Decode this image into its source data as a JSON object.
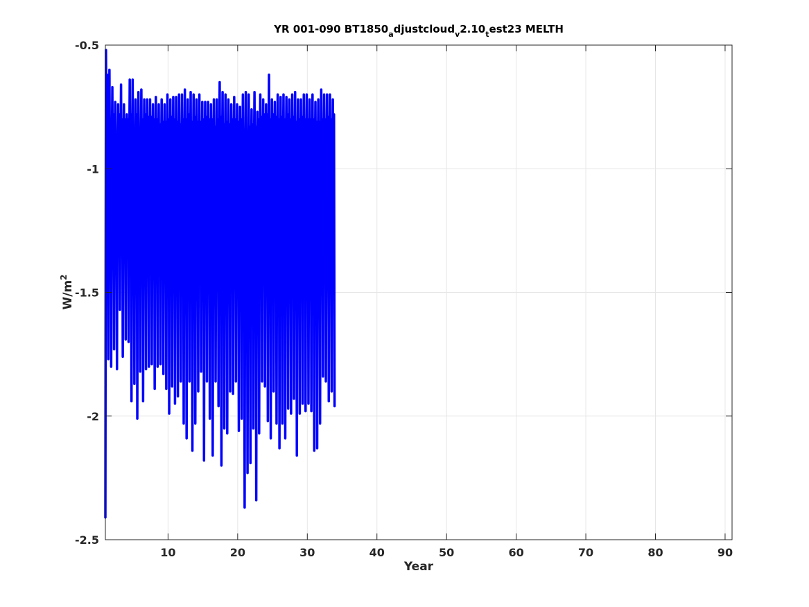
{
  "chart_data": {
    "type": "line",
    "title": {
      "t1": "YR 001-090 BT1850",
      "s1": "a",
      "t2": "djustcloud",
      "s2": "v",
      "t3": "2.10",
      "s3": "t",
      "t4": "est23 MELTH"
    },
    "xlabel": "Year",
    "ylabel": {
      "base": "W/m",
      "sup": "2"
    },
    "xlim": [
      1,
      91
    ],
    "ylim": [
      -2.5,
      -0.5
    ],
    "xticks": [
      10,
      20,
      30,
      40,
      50,
      60,
      70,
      80,
      90
    ],
    "yticks": [
      -2.5,
      -2,
      -1.5,
      -1,
      -0.5
    ],
    "xtick_labels": [
      "10",
      "20",
      "30",
      "40",
      "50",
      "60",
      "70",
      "80",
      "90"
    ],
    "ytick_labels": [
      "-2.5",
      "-2",
      "-1.5",
      "-1",
      "-0.5"
    ],
    "grid": true,
    "line_color": "#0000ff",
    "series": [
      {
        "x_start": 1.0,
        "x_step": 0.0833333,
        "values": [
          -2.41,
          -0.52,
          -0.9,
          -0.62,
          -1.05,
          -1.77,
          -0.98,
          -0.6,
          -1.1,
          -0.93,
          -1.8,
          -0.97,
          -0.67,
          -1.21,
          -0.78,
          -1.73,
          -0.96,
          -0.73,
          -1.1,
          -0.88,
          -1.81,
          -0.97,
          -0.74,
          -1.18,
          -0.78,
          -1.57,
          -0.98,
          -0.66,
          -1.26,
          -0.8,
          -1.76,
          -0.95,
          -0.74,
          -1.17,
          -0.8,
          -1.69,
          -0.95,
          -0.78,
          -1.14,
          -0.8,
          -1.7,
          -0.99,
          -0.64,
          -1.15,
          -0.78,
          -1.94,
          -0.98,
          -0.64,
          -1.14,
          -0.86,
          -1.87,
          -0.97,
          -0.72,
          -1.14,
          -0.78,
          -2.01,
          -1.0,
          -0.69,
          -1.19,
          -0.84,
          -1.82,
          -0.95,
          -0.68,
          -1.16,
          -0.8,
          -1.94,
          -0.99,
          -0.72,
          -1.13,
          -0.78,
          -1.81,
          -1.0,
          -0.72,
          -1.19,
          -0.79,
          -1.8,
          -0.97,
          -0.72,
          -1.16,
          -0.79,
          -1.79,
          -0.96,
          -0.74,
          -1.14,
          -0.8,
          -1.89,
          -0.98,
          -0.71,
          -1.14,
          -0.8,
          -1.8,
          -0.98,
          -0.74,
          -1.15,
          -0.82,
          -1.79,
          -0.98,
          -0.72,
          -1.2,
          -0.81,
          -1.83,
          -0.96,
          -0.74,
          -1.22,
          -0.81,
          -1.89,
          -0.99,
          -0.7,
          -1.14,
          -0.8,
          -1.99,
          -0.98,
          -0.72,
          -1.13,
          -0.79,
          -1.88,
          -0.97,
          -0.71,
          -1.15,
          -0.8,
          -1.95,
          -0.98,
          -0.71,
          -1.16,
          -0.81,
          -1.92,
          -0.98,
          -0.7,
          -1.18,
          -0.82,
          -1.86,
          -0.98,
          -0.7,
          -1.15,
          -0.8,
          -2.03,
          -0.97,
          -0.68,
          -1.23,
          -0.8,
          -2.09,
          -0.98,
          -0.72,
          -1.2,
          -0.78,
          -1.86,
          -1.0,
          -0.69,
          -1.2,
          -0.81,
          -2.14,
          -1.0,
          -0.7,
          -1.17,
          -0.79,
          -2.03,
          -0.98,
          -0.72,
          -1.14,
          -0.81,
          -1.9,
          -0.98,
          -0.7,
          -1.23,
          -0.81,
          -1.82,
          -1.0,
          -0.73,
          -1.19,
          -0.8,
          -2.18,
          -0.96,
          -0.73,
          -1.2,
          -0.79,
          -1.86,
          -0.97,
          -0.73,
          -1.2,
          -0.8,
          -2.01,
          -0.98,
          -0.74,
          -1.2,
          -0.8,
          -2.16,
          -0.97,
          -0.72,
          -1.17,
          -0.83,
          -1.86,
          -0.98,
          -0.72,
          -1.18,
          -0.8,
          -1.96,
          -0.98,
          -0.65,
          -1.18,
          -0.79,
          -2.2,
          -0.99,
          -0.69,
          -1.2,
          -0.82,
          -2.05,
          -0.98,
          -0.7,
          -1.14,
          -0.81,
          -2.07,
          -0.98,
          -0.72,
          -1.14,
          -0.82,
          -1.9,
          -1.0,
          -0.74,
          -1.17,
          -0.8,
          -1.91,
          -0.98,
          -0.71,
          -1.15,
          -0.8,
          -1.86,
          -0.98,
          -0.74,
          -1.16,
          -0.81,
          -2.06,
          -0.98,
          -0.75,
          -1.18,
          -0.8,
          -2.01,
          -0.96,
          -0.7,
          -1.18,
          -0.86,
          -2.37,
          -0.98,
          -0.69,
          -1.2,
          -0.85,
          -2.23,
          -0.99,
          -0.7,
          -1.18,
          -0.83,
          -2.19,
          -0.98,
          -0.76,
          -1.19,
          -0.82,
          -2.05,
          -0.97,
          -0.69,
          -1.2,
          -0.83,
          -2.34,
          -0.96,
          -0.77,
          -1.15,
          -0.8,
          -2.07,
          -0.98,
          -0.7,
          -1.19,
          -0.79,
          -1.86,
          -0.98,
          -0.72,
          -1.22,
          -0.78,
          -1.88,
          -0.98,
          -0.74,
          -1.18,
          -0.78,
          -2.02,
          -0.98,
          -0.62,
          -1.2,
          -0.8,
          -2.09,
          -0.98,
          -0.72,
          -1.14,
          -0.78,
          -1.9,
          -0.98,
          -0.73,
          -1.2,
          -0.79,
          -2.03,
          -0.98,
          -0.7,
          -1.18,
          -0.8,
          -2.13,
          -0.97,
          -0.71,
          -1.15,
          -0.79,
          -2.03,
          -0.98,
          -0.7,
          -1.17,
          -0.8,
          -2.09,
          -0.96,
          -0.71,
          -1.16,
          -0.78,
          -1.97,
          -0.98,
          -0.72,
          -1.16,
          -0.8,
          -1.99,
          -0.98,
          -0.7,
          -1.15,
          -0.79,
          -1.93,
          -0.98,
          -0.69,
          -1.17,
          -0.81,
          -2.16,
          -0.97,
          -0.72,
          -1.14,
          -0.8,
          -1.99,
          -0.98,
          -0.72,
          -1.16,
          -0.79,
          -1.95,
          -0.98,
          -0.7,
          -1.14,
          -0.8,
          -1.98,
          -0.98,
          -0.7,
          -1.18,
          -0.8,
          -1.95,
          -0.98,
          -0.72,
          -1.16,
          -0.8,
          -1.98,
          -0.98,
          -0.7,
          -1.17,
          -0.8,
          -2.14,
          -0.98,
          -0.73,
          -1.15,
          -0.81,
          -2.13,
          -0.99,
          -0.72,
          -1.15,
          -0.81,
          -2.03,
          -0.98,
          -0.68,
          -1.18,
          -0.8,
          -1.84,
          -0.98,
          -0.7,
          -1.14,
          -0.8,
          -1.86,
          -0.98,
          -0.7,
          -1.15,
          -0.79,
          -1.94,
          -0.98,
          -0.7,
          -1.17,
          -0.8,
          -1.9,
          -0.98,
          -0.72,
          -1.17,
          -0.78,
          -1.96
        ]
      }
    ]
  }
}
